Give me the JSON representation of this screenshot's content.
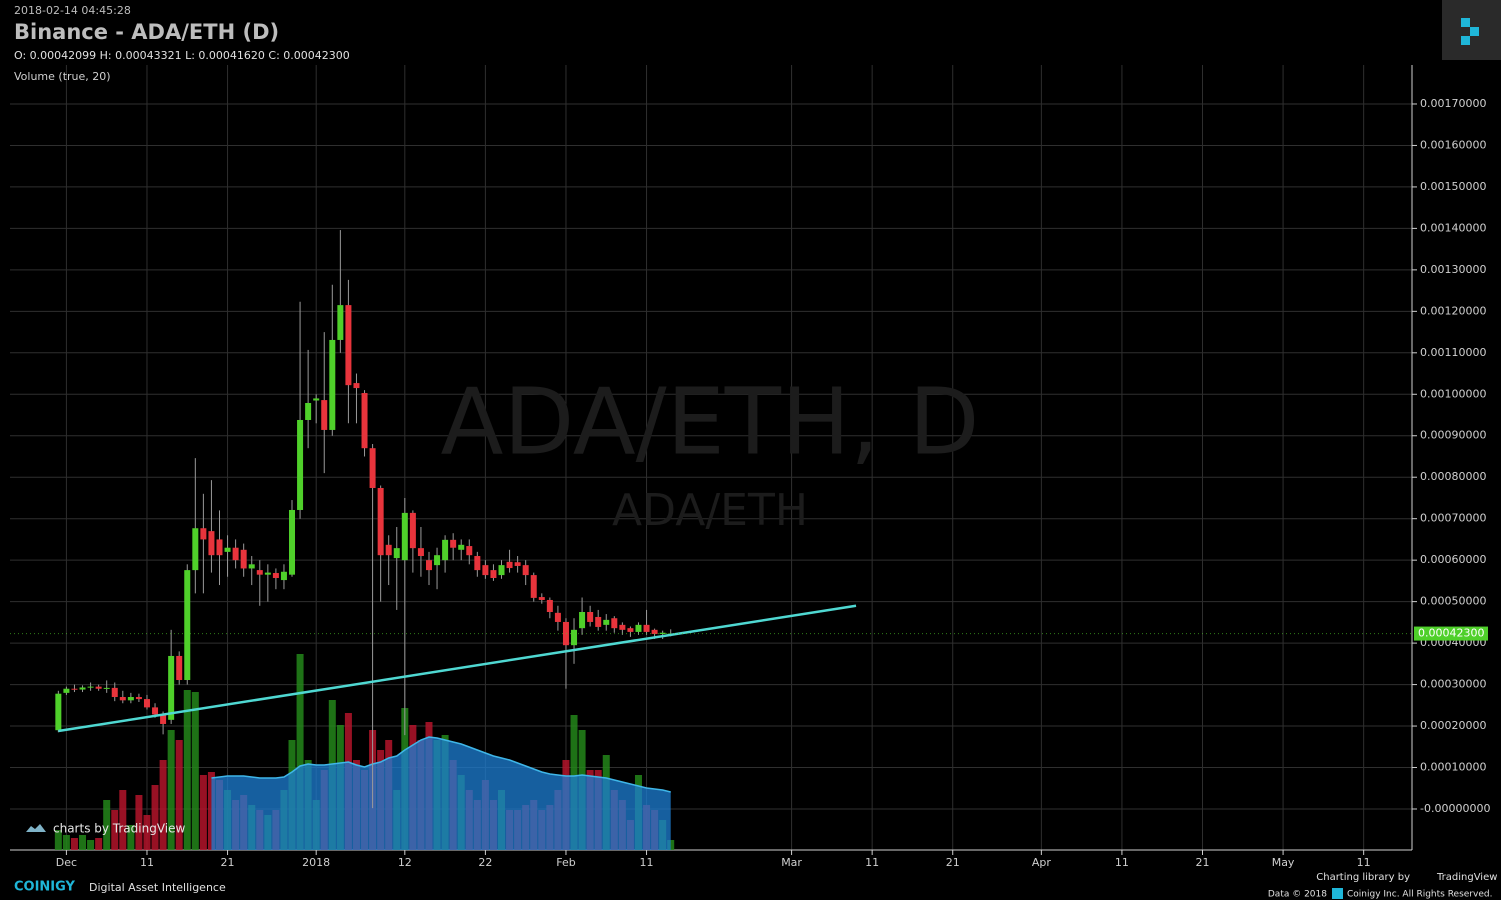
{
  "chart_data": {
    "type": "candlestick",
    "title": "Binance - ADA/ETH (D)",
    "timestamp": "2018-02-14 04:45:28",
    "ohlc_legend": "O: 0.00042099 H: 0.00043321 L: 0.00041620 C: 0.00042300",
    "indicator_label": "Volume (true, 20)",
    "watermark": "ADA/ETH, D",
    "watermark_sub": "ADA/ETH",
    "up_color": "#4fd02a",
    "down_color": "#e8343c",
    "wick_color": "#9a9a9a",
    "volume_up_color": "#23861a",
    "volume_down_color": "#b3142a",
    "volume_ma_color": "#1d7fd4",
    "volume_ma_line_color": "#3fb6e8",
    "grid": true,
    "xlim": [
      "2017-11-24",
      "2018-05-17"
    ],
    "ylim": [
      -9.89e-05,
      0.001794
    ],
    "volume_ylim": [
      0,
      200
    ],
    "xticks": [
      {
        "value": "2017-12-01",
        "label": "Dec"
      },
      {
        "value": "2017-12-11",
        "label": "11"
      },
      {
        "value": "2017-12-21",
        "label": "21"
      },
      {
        "value": "2018-01-01",
        "label": "2018"
      },
      {
        "value": "2018-01-12",
        "label": "12"
      },
      {
        "value": "2018-01-22",
        "label": "22"
      },
      {
        "value": "2018-02-01",
        "label": "Feb"
      },
      {
        "value": "2018-02-11",
        "label": "11"
      },
      {
        "value": "2018-03-01",
        "label": "Mar"
      },
      {
        "value": "2018-03-11",
        "label": "11"
      },
      {
        "value": "2018-03-21",
        "label": "21"
      },
      {
        "value": "2018-04-01",
        "label": "Apr"
      },
      {
        "value": "2018-04-11",
        "label": "11"
      },
      {
        "value": "2018-04-21",
        "label": "21"
      },
      {
        "value": "2018-05-01",
        "label": "May"
      },
      {
        "value": "2018-05-11",
        "label": "11"
      }
    ],
    "yticks": [
      {
        "value": 0,
        "label": "-0.00000000"
      },
      {
        "value": 0.0001,
        "label": "0.00010000"
      },
      {
        "value": 0.0002,
        "label": "0.00020000"
      },
      {
        "value": 0.0003,
        "label": "0.00030000"
      },
      {
        "value": 0.0004,
        "label": "0.00040000"
      },
      {
        "value": 0.0005,
        "label": "0.00050000"
      },
      {
        "value": 0.0006,
        "label": "0.00060000"
      },
      {
        "value": 0.0007,
        "label": "0.00070000"
      },
      {
        "value": 0.0008,
        "label": "0.00080000"
      },
      {
        "value": 0.0009,
        "label": "0.00090000"
      },
      {
        "value": 0.001,
        "label": "0.00100000"
      },
      {
        "value": 0.0011,
        "label": "0.00110000"
      },
      {
        "value": 0.0012,
        "label": "0.00120000"
      },
      {
        "value": 0.0013,
        "label": "0.00130000"
      },
      {
        "value": 0.0014,
        "label": "0.00140000"
      },
      {
        "value": 0.0015,
        "label": "0.00150000"
      },
      {
        "value": 0.0016,
        "label": "0.00160000"
      },
      {
        "value": 0.0017,
        "label": "0.00170000"
      }
    ],
    "last_price": {
      "value": 0.000423,
      "label": "0.00042300"
    },
    "trendline": {
      "x": [
        "2017-11-30",
        "2018-03-09"
      ],
      "values": [
        0.000188,
        0.00049
      ],
      "color": "#4fd8d2"
    },
    "x": [
      "2017-11-30",
      "2017-12-01",
      "2017-12-02",
      "2017-12-03",
      "2017-12-04",
      "2017-12-05",
      "2017-12-06",
      "2017-12-07",
      "2017-12-08",
      "2017-12-09",
      "2017-12-10",
      "2017-12-11",
      "2017-12-12",
      "2017-12-13",
      "2017-12-14",
      "2017-12-15",
      "2017-12-16",
      "2017-12-17",
      "2017-12-18",
      "2017-12-19",
      "2017-12-20",
      "2017-12-21",
      "2017-12-22",
      "2017-12-23",
      "2017-12-24",
      "2017-12-25",
      "2017-12-26",
      "2017-12-27",
      "2017-12-28",
      "2017-12-29",
      "2017-12-30",
      "2017-12-31",
      "2018-01-01",
      "2018-01-02",
      "2018-01-03",
      "2018-01-04",
      "2018-01-05",
      "2018-01-06",
      "2018-01-07",
      "2018-01-08",
      "2018-01-09",
      "2018-01-10",
      "2018-01-11",
      "2018-01-12",
      "2018-01-13",
      "2018-01-14",
      "2018-01-15",
      "2018-01-16",
      "2018-01-17",
      "2018-01-18",
      "2018-01-19",
      "2018-01-20",
      "2018-01-21",
      "2018-01-22",
      "2018-01-23",
      "2018-01-24",
      "2018-01-25",
      "2018-01-26",
      "2018-01-27",
      "2018-01-28",
      "2018-01-29",
      "2018-01-30",
      "2018-01-31",
      "2018-02-01",
      "2018-02-02",
      "2018-02-03",
      "2018-02-04",
      "2018-02-05",
      "2018-02-06",
      "2018-02-07",
      "2018-02-08",
      "2018-02-09",
      "2018-02-10",
      "2018-02-11",
      "2018-02-12",
      "2018-02-13",
      "2018-02-14"
    ],
    "open": [
      0.00019,
      0.00028,
      0.00029,
      0.000288,
      0.000293,
      0.000295,
      0.00029,
      0.000292,
      0.00027,
      0.000262,
      0.00027,
      0.000265,
      0.000245,
      0.000228,
      0.000215,
      0.000369,
      0.000311,
      0.000576,
      0.000677,
      0.00067,
      0.00065,
      0.00062,
      0.00063,
      0.000625,
      0.00058,
      0.000576,
      0.000565,
      0.000569,
      0.000552,
      0.000565,
      0.000721,
      0.000938,
      0.000985,
      0.000986,
      0.000914,
      0.001131,
      0.001215,
      0.001027,
      0.001003,
      0.00087,
      0.000774,
      0.000637,
      0.000605,
      0.0006,
      0.000714,
      0.000629,
      0.0006,
      0.000588,
      0.0006,
      0.000649,
      0.000625,
      0.000634,
      0.00061,
      0.000588,
      0.000576,
      0.000564,
      0.000596,
      0.000595,
      0.000588,
      0.000564,
      0.000511,
      0.000504,
      0.000473,
      0.000451,
      0.000395,
      0.000436,
      0.000475,
      0.000463,
      0.000444,
      0.00046,
      0.000444,
      0.000436,
      0.000427,
      0.000444,
      0.000432,
      0.000422,
      0.00042099
    ],
    "high": [
      0.000285,
      0.000295,
      0.0003,
      0.000298,
      0.000305,
      0.0003,
      0.00031,
      0.000305,
      0.000285,
      0.00028,
      0.000278,
      0.000275,
      0.000255,
      0.000235,
      0.000432,
      0.00038,
      0.00059,
      0.000846,
      0.00076,
      0.000793,
      0.00072,
      0.00066,
      0.00065,
      0.00064,
      0.00061,
      0.0006,
      0.00059,
      0.00058,
      0.00059,
      0.000745,
      0.001223,
      0.001107,
      0.001,
      0.00115,
      0.001264,
      0.001396,
      0.001276,
      0.00105,
      0.00101,
      0.00088,
      0.00078,
      0.00066,
      0.00068,
      0.00075,
      0.00072,
      0.00068,
      0.00062,
      0.00063,
      0.00066,
      0.000665,
      0.00065,
      0.00065,
      0.00062,
      0.0006,
      0.00059,
      0.0006,
      0.000625,
      0.00061,
      0.0006,
      0.00057,
      0.00052,
      0.00051,
      0.00049,
      0.00046,
      0.00046,
      0.00051,
      0.00049,
      0.00048,
      0.00047,
      0.000465,
      0.00045,
      0.00044,
      0.00045,
      0.00048,
      0.000435,
      0.00043,
      0.00043321
    ],
    "low": [
      0.000185,
      0.000275,
      0.000282,
      0.000282,
      0.000285,
      0.000285,
      0.00028,
      0.00026,
      0.000255,
      0.000255,
      0.000258,
      0.00024,
      0.00022,
      0.00018,
      0.000205,
      0.0003,
      0.0003,
      0.00052,
      0.00052,
      0.00057,
      0.00054,
      0.00056,
      0.00058,
      0.00056,
      0.00054,
      0.00049,
      0.0005,
      0.00053,
      0.00053,
      0.00056,
      0.0007,
      0.00087,
      0.00093,
      0.00081,
      0.0009,
      0.0011,
      0.00093,
      0.00093,
      0.00085,
      2e-06,
      0.0005,
      0.00054,
      0.00048,
      0.000178,
      0.00057,
      0.00056,
      0.00054,
      0.00053,
      0.00057,
      0.0006,
      0.0006,
      0.00059,
      0.00056,
      0.000555,
      0.00055,
      0.000555,
      0.00057,
      0.00057,
      0.00054,
      0.0005,
      0.000495,
      0.00046,
      0.00043,
      0.00029,
      0.00035,
      0.00042,
      0.00044,
      0.00043,
      0.00043,
      0.000425,
      0.00042,
      0.000415,
      0.00042,
      0.00042,
      0.00041,
      0.00041,
      0.0004162
    ],
    "close": [
      0.000278,
      0.00029,
      0.000288,
      0.000293,
      0.000295,
      0.00029,
      0.000292,
      0.00027,
      0.000262,
      0.00027,
      0.000265,
      0.000245,
      0.000228,
      0.000205,
      0.000369,
      0.000311,
      0.000576,
      0.000677,
      0.00065,
      0.000612,
      0.000612,
      0.00063,
      0.0006,
      0.00058,
      0.00059,
      0.000565,
      0.00057,
      0.000557,
      0.000572,
      0.000721,
      0.000938,
      0.000979,
      0.00099,
      0.000914,
      0.001131,
      0.001215,
      0.001022,
      0.001015,
      0.00087,
      0.000774,
      0.000612,
      0.000612,
      0.000629,
      0.000714,
      0.000629,
      0.00061,
      0.000576,
      0.000612,
      0.000649,
      0.00063,
      0.000637,
      0.000612,
      0.000576,
      0.000564,
      0.000557,
      0.000588,
      0.000581,
      0.000586,
      0.000564,
      0.000509,
      0.000504,
      0.000475,
      0.000451,
      0.000395,
      0.000432,
      0.000475,
      0.000451,
      0.000439,
      0.000456,
      0.000436,
      0.000432,
      0.000427,
      0.000444,
      0.000427,
      0.000422,
      0.000425,
      0.000423
    ],
    "volume": [
      20,
      15,
      12,
      15,
      10,
      12,
      50,
      40,
      60,
      25,
      55,
      35,
      65,
      90,
      120,
      110,
      160,
      158,
      75,
      78,
      70,
      60,
      50,
      55,
      45,
      40,
      35,
      40,
      60,
      110,
      196,
      90,
      50,
      80,
      150,
      125,
      137,
      90,
      80,
      120,
      100,
      110,
      60,
      142,
      125,
      110,
      128,
      110,
      115,
      90,
      75,
      60,
      50,
      70,
      50,
      60,
      40,
      40,
      45,
      50,
      40,
      45,
      60,
      90,
      135,
      120,
      80,
      80,
      95,
      60,
      50,
      30,
      75,
      45,
      40,
      30,
      10
    ],
    "volume_ma": [
      null,
      null,
      null,
      null,
      null,
      null,
      null,
      null,
      null,
      null,
      null,
      null,
      null,
      null,
      null,
      null,
      null,
      null,
      null,
      72,
      73,
      74,
      74,
      74,
      73,
      72,
      72,
      72,
      73,
      78,
      84,
      86,
      85,
      85,
      86,
      87,
      88,
      85,
      83,
      86,
      88,
      92,
      94,
      100,
      105,
      110,
      113,
      112,
      110,
      108,
      106,
      103,
      100,
      97,
      94,
      92,
      90,
      87,
      84,
      81,
      78,
      76,
      75,
      74,
      74,
      75,
      74,
      73,
      72,
      70,
      68,
      66,
      64,
      62,
      61,
      60,
      58
    ]
  },
  "branding": {
    "tradingview_badge": "charts by TradingView",
    "logo": "COINIGY",
    "tagline": "Digital Asset Intelligence",
    "library_credit": "Charting library by",
    "library_name": "TradingView",
    "data_credit": "Data © 2018",
    "rights": "Coinigy Inc. All Rights Reserved."
  }
}
